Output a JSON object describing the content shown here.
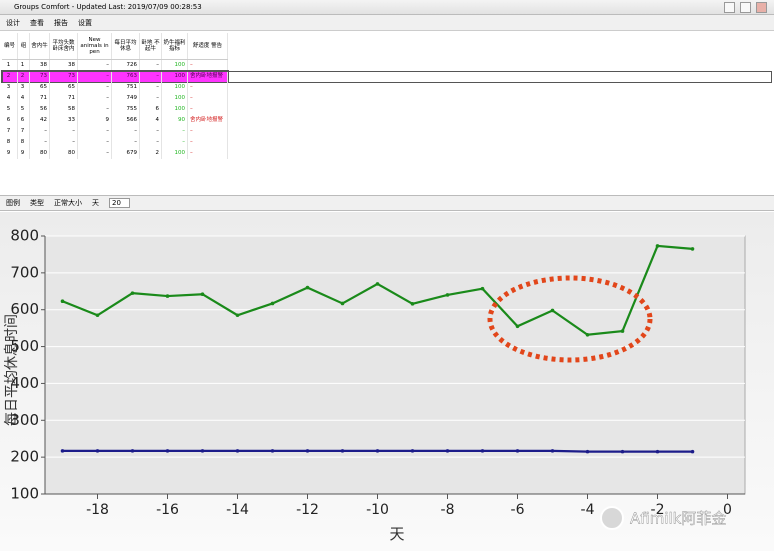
{
  "window": {
    "title": "Groups Comfort - Updated Last: 2019/07/09 00:28:53"
  },
  "toolbar": [
    "设计",
    "查看",
    "报告",
    "设置"
  ],
  "table": {
    "columns": [
      "编号",
      "组",
      "舍内牛",
      "平均头数 卧床舍内",
      "New animals in pen",
      "每日平均 休息",
      "卧地 不起牛",
      "奶牛福利 指标",
      "舒适度 警告"
    ],
    "rows": [
      {
        "cells": [
          1,
          1,
          38,
          38,
          "–",
          726,
          "–",
          100,
          "–"
        ]
      },
      {
        "cells": [
          2,
          2,
          73,
          73,
          "–",
          763,
          "–",
          100,
          "舍内卧地报警"
        ],
        "selected": true
      },
      {
        "cells": [
          3,
          3,
          65,
          65,
          "–",
          751,
          "–",
          100,
          "–"
        ]
      },
      {
        "cells": [
          4,
          4,
          71,
          71,
          "–",
          749,
          "–",
          100,
          "–"
        ]
      },
      {
        "cells": [
          5,
          5,
          56,
          58,
          "–",
          755,
          6,
          100,
          "–"
        ]
      },
      {
        "cells": [
          6,
          6,
          42,
          33,
          9,
          566,
          4,
          90,
          "舍内卧地报警"
        ]
      },
      {
        "cells": [
          7,
          7,
          "–",
          "–",
          "–",
          "–",
          "–",
          "–",
          "–"
        ]
      },
      {
        "cells": [
          8,
          8,
          "–",
          "–",
          "–",
          "–",
          "–",
          "–",
          "–"
        ]
      },
      {
        "cells": [
          9,
          9,
          80,
          80,
          "–",
          679,
          2,
          100,
          "–"
        ]
      }
    ]
  },
  "chart_toolbar": [
    "图例",
    "类型",
    "正常大小",
    "天",
    "20"
  ],
  "chart_data": {
    "type": "line",
    "x_label": "天",
    "y_label": "每日平均休息时间",
    "x": [
      -19,
      -18,
      -17,
      -16,
      -15,
      -14,
      -13,
      -12,
      -11,
      -10,
      -9,
      -8,
      -7,
      -6,
      -5,
      -4,
      -3,
      -2,
      -1
    ],
    "series": [
      {
        "color": "#1a8a1a",
        "values": [
          623,
          585,
          645,
          637,
          642,
          585,
          617,
          660,
          617,
          670,
          616,
          640,
          657,
          555,
          598,
          532,
          542,
          773,
          765
        ]
      },
      {
        "color": "#1c1c8a",
        "values": [
          217,
          217,
          217,
          217,
          217,
          217,
          217,
          217,
          217,
          217,
          217,
          217,
          217,
          217,
          217,
          215,
          215,
          215,
          215
        ]
      }
    ],
    "xlim": [
      -19.5,
      0.5
    ],
    "xticks": [
      -18,
      -16,
      -14,
      -12,
      -10,
      -8,
      -6,
      -4,
      -2,
      0
    ],
    "ylim": [
      100,
      800
    ],
    "yticks": [
      100,
      200,
      300,
      400,
      500,
      600,
      700,
      800
    ],
    "grid": true
  },
  "watermark": "Afimilk阿菲金"
}
